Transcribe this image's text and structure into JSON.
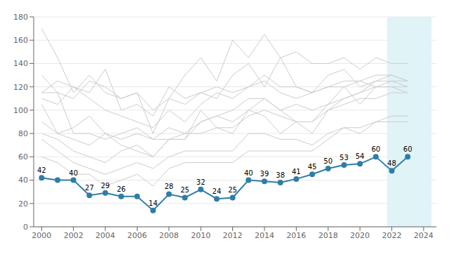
{
  "chart_data": {
    "type": "line",
    "x": [
      2000,
      2001,
      2002,
      2003,
      2004,
      2005,
      2006,
      2007,
      2008,
      2009,
      2010,
      2011,
      2012,
      2013,
      2014,
      2015,
      2016,
      2017,
      2018,
      2019,
      2020,
      2021,
      2022,
      2023
    ],
    "xlim": [
      1999.5,
      2024.8
    ],
    "xticks": [
      2000,
      2002,
      2004,
      2006,
      2008,
      2010,
      2012,
      2014,
      2016,
      2018,
      2020,
      2022,
      2024
    ],
    "ylim": [
      0,
      180
    ],
    "yticks": [
      0,
      20,
      40,
      60,
      80,
      100,
      120,
      140,
      160,
      180
    ],
    "grid": "y",
    "shaded": {
      "x": [
        2021.7,
        2024.5
      ],
      "color": "#e0f3f7"
    },
    "series": [
      {
        "color": "#cccccc",
        "values": [
          170,
          145,
          115,
          130,
          115,
          110,
          115,
          100,
          110,
          130,
          145,
          125,
          160,
          145,
          165,
          145,
          150,
          140,
          140,
          145,
          135,
          145,
          140,
          140
        ]
      },
      {
        "color": "#cccccc",
        "values": [
          130,
          115,
          110,
          125,
          120,
          110,
          115,
          80,
          110,
          105,
          115,
          110,
          130,
          140,
          120,
          145,
          120,
          115,
          130,
          135,
          120,
          125,
          130,
          125
        ]
      },
      {
        "color": "#cccccc",
        "values": [
          115,
          125,
          120,
          115,
          135,
          100,
          105,
          95,
          120,
          110,
          115,
          120,
          115,
          120,
          130,
          120,
          120,
          115,
          120,
          125,
          125,
          120,
          125,
          120
        ]
      },
      {
        "color": "#cccccc",
        "values": [
          110,
          105,
          120,
          110,
          100,
          95,
          90,
          85,
          100,
          90,
          105,
          115,
          110,
          120,
          125,
          115,
          110,
          115,
          120,
          120,
          125,
          130,
          130,
          125
        ]
      },
      {
        "color": "#cccccc",
        "values": [
          105,
          80,
          85,
          95,
          80,
          75,
          80,
          75,
          85,
          80,
          90,
          95,
          100,
          110,
          110,
          100,
          105,
          100,
          105,
          110,
          115,
          120,
          120,
          120
        ]
      },
      {
        "color": "#cccccc",
        "values": [
          115,
          115,
          80,
          80,
          75,
          80,
          85,
          75,
          75,
          75,
          100,
          85,
          80,
          100,
          95,
          80,
          90,
          90,
          105,
          120,
          105,
          120,
          120,
          115
        ]
      },
      {
        "color": "#cccccc",
        "values": [
          80,
          75,
          65,
          60,
          55,
          65,
          70,
          60,
          75,
          75,
          90,
          95,
          90,
          100,
          110,
          100,
          90,
          80,
          100,
          110,
          115,
          125,
          125,
          125
        ]
      },
      {
        "color": "#cccccc",
        "values": [
          90,
          80,
          75,
          70,
          80,
          70,
          65,
          60,
          75,
          80,
          80,
          85,
          85,
          95,
          100,
          95,
          90,
          90,
          100,
          105,
          110,
          110,
          115,
          115
        ]
      },
      {
        "color": "#cccccc",
        "values": [
          75,
          65,
          55,
          50,
          45,
          50,
          55,
          50,
          60,
          65,
          65,
          65,
          65,
          80,
          80,
          75,
          75,
          70,
          80,
          85,
          85,
          90,
          95,
          95
        ]
      },
      {
        "color": "#cccccc",
        "values": [
          60,
          55,
          45,
          45,
          35,
          40,
          45,
          35,
          50,
          55,
          55,
          55,
          55,
          65,
          65,
          65,
          65,
          65,
          75,
          85,
          80,
          90,
          90,
          90
        ]
      },
      {
        "color": "#2e7ea6",
        "marker": "circle",
        "data_labels": true,
        "values": [
          42,
          40,
          40,
          27,
          29,
          26,
          26,
          14,
          28,
          25,
          32,
          24,
          25,
          40,
          39,
          38,
          41,
          45,
          50,
          53,
          54,
          60,
          48,
          60
        ],
        "value_labels": [
          "42",
          null,
          "40",
          "27",
          "29",
          "26",
          null,
          "14",
          "28",
          "25",
          "32",
          "24",
          "25",
          "40",
          "39",
          "38",
          "41",
          "45",
          "50",
          "53",
          "54",
          "60",
          "48",
          "60"
        ]
      }
    ]
  }
}
